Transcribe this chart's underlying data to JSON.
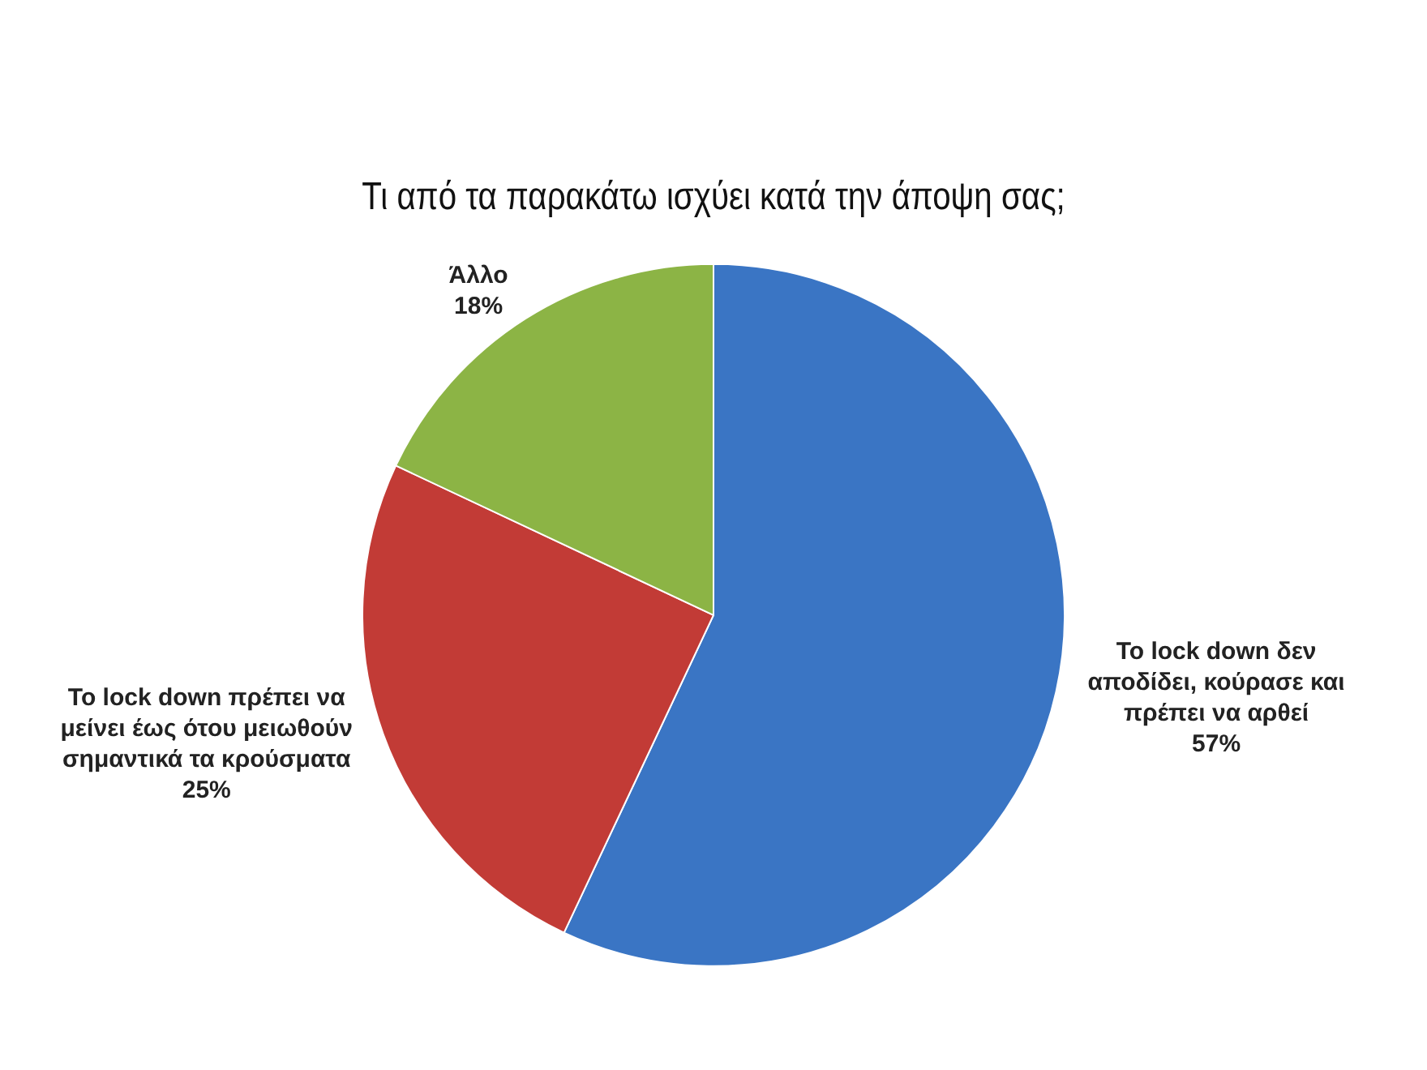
{
  "chart_data": {
    "type": "pie",
    "title": "Τι από τα παρακάτω ισχύει κατά την άποψη σας;",
    "categories": [
      "Το lock down δεν αποδίδει, κούρασε και πρέπει να αρθεί",
      "Το lock down πρέπει να μείνει έως ότου μειωθούν σημαντικά τα κρούσματα",
      "Άλλο"
    ],
    "values": [
      57,
      25,
      18
    ],
    "colors": [
      "#3a75c4",
      "#c23b36",
      "#8cb445"
    ],
    "value_labels": [
      "57%",
      "25%",
      "18%"
    ],
    "legend": false
  }
}
